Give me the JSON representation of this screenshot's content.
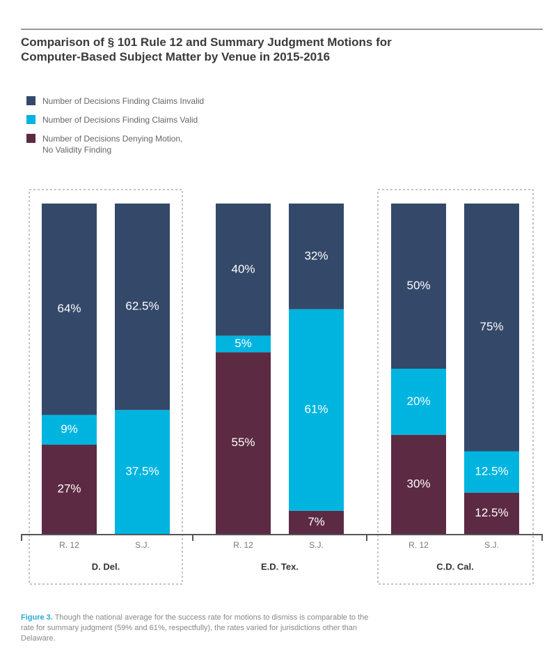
{
  "chart_data": {
    "type": "stacked_bar",
    "title": "Comparison of § 101 Rule 12 and Summary Judgment Motions for Computer-Based Subject Matter by Venue in 2015-2016",
    "categories": [
      "R. 12",
      "S.J.",
      "R. 12",
      "S.J.",
      "R. 12",
      "S.J."
    ],
    "groups": [
      "D. Del.",
      "E.D. Tex.",
      "C.D. Cal."
    ],
    "ylim": [
      0,
      100
    ],
    "series": [
      {
        "name": "Number of Decisions Finding Claims Invalid",
        "color": "#34496a",
        "values": [
          64,
          62.5,
          40,
          32,
          50,
          75
        ],
        "value_labels": [
          "64%",
          "62.5%",
          "40%",
          "32%",
          "50%",
          "75%"
        ]
      },
      {
        "name": "Number of Decisions Finding Claims Valid",
        "color": "#00b4e0",
        "values": [
          9,
          37.5,
          5,
          61,
          20,
          12.5
        ],
        "value_labels": [
          "9%",
          "37.5%",
          "5%",
          "61%",
          "20%",
          "12.5%"
        ]
      },
      {
        "name": "Number of Decisions Denying Motion, No Validity Finding",
        "color": "#5c2a42",
        "values": [
          27,
          0,
          55,
          7,
          30,
          12.5
        ],
        "value_labels": [
          "27%",
          null,
          "55%",
          "7%",
          "30%",
          "12.5%"
        ]
      }
    ],
    "figure_label": "Figure 3.",
    "caption": "Though the national average for the success rate for motions to dismiss is comparable to the rate for summary judgment (59% and 61%, respectfully), the rates varied for jurisdictions other than Delaware."
  }
}
